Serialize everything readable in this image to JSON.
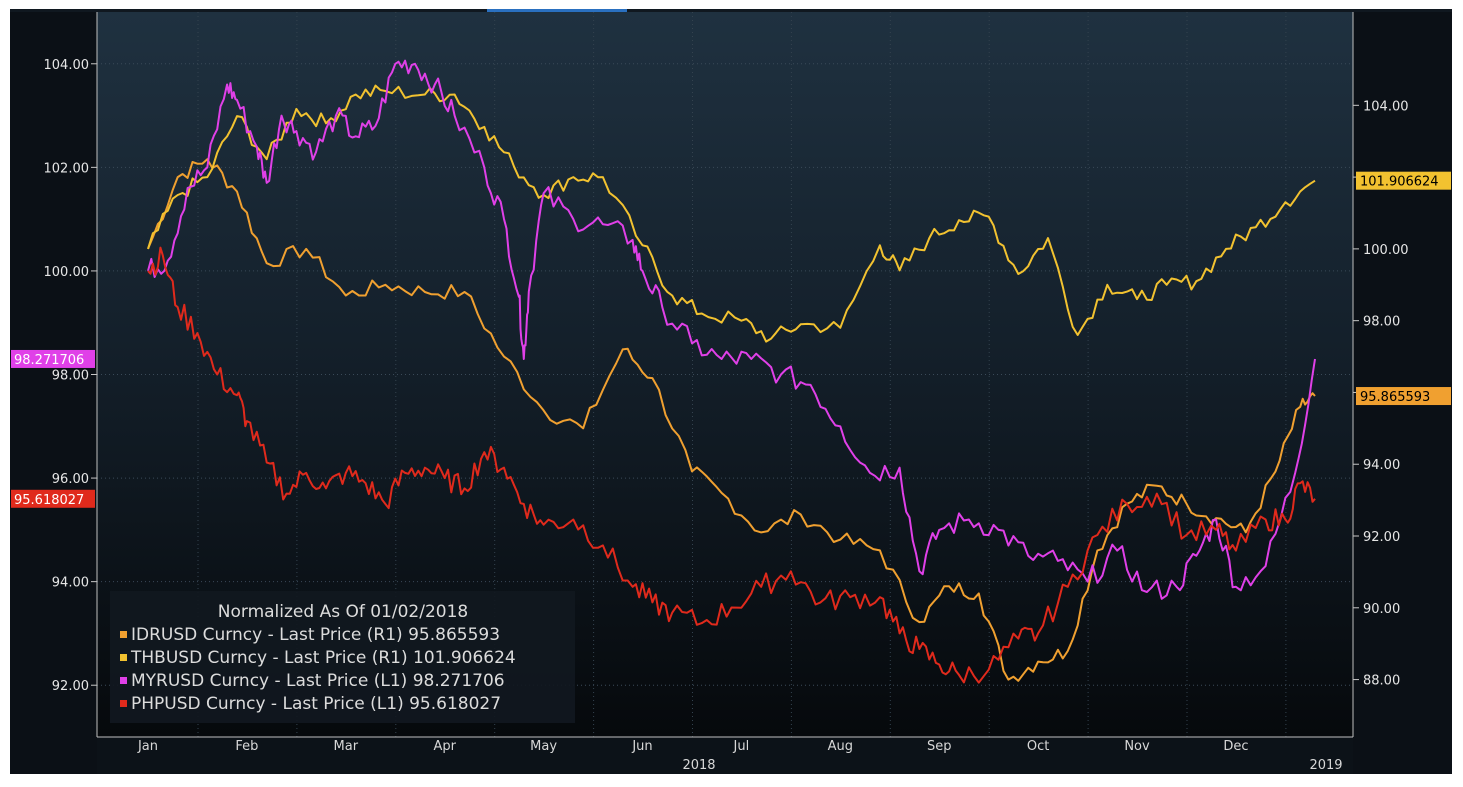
{
  "chart_data": {
    "type": "line",
    "legend_title": "Normalized As Of 01/02/2018",
    "x_months": [
      "Jan",
      "Feb",
      "Mar",
      "Apr",
      "May",
      "Jun",
      "Jul",
      "Aug",
      "Sep",
      "Oct",
      "Nov",
      "Dec"
    ],
    "year_labels": [
      "2018",
      "2019"
    ],
    "left_axis": {
      "ticks": [
        "104.00",
        "102.00",
        "100.00",
        "98.00",
        "96.00",
        "94.00",
        "92.00"
      ],
      "ylim": [
        91.0,
        105.0
      ]
    },
    "right_axis": {
      "ticks": [
        "104.00",
        "102.00",
        "100.00",
        "98.00",
        "96.00",
        "94.00",
        "92.00",
        "90.00",
        "88.00"
      ],
      "ylim": [
        86.4,
        106.6
      ]
    },
    "legend_placement": "bottom-left",
    "series": [
      {
        "name": "IDRUSD Curncy - Last Price (R1) 95.865593",
        "short": "IDRUSD",
        "axis": "right",
        "color": "#f0a030",
        "last_label": "95.865593",
        "x": [
          0,
          0.3,
          0.6,
          0.9,
          1.2,
          1.6,
          2.0,
          2.4,
          2.8,
          3.2,
          3.6,
          4.0,
          4.4,
          4.8,
          5.1,
          5.5,
          5.8,
          6.2,
          6.6,
          7.0,
          7.4,
          7.8,
          8.1,
          8.4,
          8.7,
          9.0,
          9.3,
          9.6,
          9.9,
          10.2,
          10.5,
          10.8,
          11.1,
          11.4,
          11.65,
          11.8
        ],
        "values": [
          100.0,
          102.0,
          102.5,
          101.6,
          99.6,
          100.0,
          98.7,
          99.0,
          98.8,
          98.8,
          97.0,
          95.5,
          95.0,
          97.2,
          96.4,
          93.8,
          93.2,
          92.1,
          92.6,
          91.9,
          91.6,
          89.6,
          90.6,
          90.4,
          88.0,
          88.5,
          88.8,
          91.6,
          92.9,
          93.4,
          92.9,
          92.5,
          92.1,
          93.8,
          95.6,
          95.9
        ]
      },
      {
        "name": "THBUSD Curncy - Last Price (R1) 101.906624",
        "short": "THBUSD",
        "axis": "right",
        "color": "#f2c230",
        "last_label": "101.906624",
        "x": [
          0,
          0.3,
          0.6,
          0.9,
          1.2,
          1.5,
          1.8,
          2.1,
          2.4,
          2.8,
          3.1,
          3.4,
          3.7,
          4.0,
          4.3,
          4.6,
          5.0,
          5.3,
          5.6,
          6.0,
          6.3,
          6.6,
          7.0,
          7.4,
          7.6,
          7.9,
          8.2,
          8.5,
          8.8,
          9.1,
          9.4,
          9.7,
          10.0,
          10.3,
          10.6,
          10.9,
          11.2,
          11.5,
          11.8
        ],
        "values": [
          100.0,
          101.5,
          102.0,
          103.7,
          102.5,
          103.9,
          103.5,
          104.3,
          104.4,
          104.3,
          104.3,
          103.4,
          102.3,
          101.5,
          102.0,
          102.0,
          100.1,
          98.7,
          98.2,
          98.0,
          97.5,
          97.9,
          97.8,
          100.1,
          99.4,
          100.3,
          100.8,
          100.9,
          99.3,
          100.3,
          97.6,
          99.0,
          98.6,
          99.0,
          99.1,
          100.0,
          100.6,
          101.3,
          101.9
        ]
      },
      {
        "name": "MYRUSD Curncy - Last Price (L1) 98.271706",
        "short": "MYRUSD",
        "axis": "left",
        "color": "#e040e8",
        "last_label": "98.271706",
        "x": [
          0,
          0.2,
          0.4,
          0.6,
          0.8,
          0.9,
          1.1,
          1.2,
          1.35,
          1.5,
          1.7,
          1.9,
          2.1,
          2.3,
          2.5,
          2.7,
          2.9,
          3.1,
          3.4,
          3.6,
          3.75,
          3.8,
          3.85,
          4.0,
          4.3,
          4.6,
          4.9,
          5.0,
          5.2,
          5.5,
          5.8,
          6.1,
          6.4,
          6.7,
          7.0,
          7.3,
          7.6,
          7.8,
          8.0,
          8.3,
          8.6,
          8.9,
          9.2,
          9.5,
          9.8,
          10.1,
          10.4,
          10.6,
          10.8,
          11.0,
          11.3,
          11.6,
          11.8
        ],
        "values": [
          100.0,
          100.2,
          101.6,
          102.0,
          103.6,
          103.3,
          102.4,
          101.7,
          103.0,
          102.7,
          102.3,
          103.0,
          102.6,
          102.8,
          104.0,
          104.0,
          103.6,
          103.0,
          102.0,
          101.0,
          99.5,
          98.3,
          99.6,
          101.5,
          101.0,
          100.9,
          100.6,
          100.0,
          99.3,
          98.6,
          98.3,
          98.3,
          98.0,
          97.8,
          97.0,
          96.1,
          96.2,
          94.2,
          95.0,
          95.2,
          95.0,
          94.5,
          94.4,
          94.0,
          94.6,
          93.8,
          93.9,
          94.5,
          95.2,
          93.9,
          94.3,
          96.1,
          98.3
        ]
      },
      {
        "name": "PHPUSD Curncy - Last Price (L1) 95.618027",
        "short": "PHPUSD",
        "axis": "left",
        "color": "#e02a1c",
        "last_label": "95.618027",
        "x": [
          0,
          0.15,
          0.3,
          0.5,
          0.7,
          0.9,
          1.0,
          1.2,
          1.4,
          1.6,
          1.8,
          2.0,
          2.2,
          2.4,
          2.6,
          2.8,
          3.0,
          3.2,
          3.4,
          3.6,
          3.8,
          4.0,
          4.3,
          4.6,
          4.9,
          5.1,
          5.3,
          5.6,
          5.9,
          6.2,
          6.5,
          6.8,
          7.1,
          7.4,
          7.6,
          7.8,
          8.0,
          8.2,
          8.5,
          8.8,
          9.0,
          9.3,
          9.6,
          9.9,
          10.2,
          10.5,
          10.8,
          11.0,
          11.3,
          11.5,
          11.65,
          11.8
        ],
        "values": [
          100.0,
          100.3,
          99.3,
          98.8,
          98.0,
          97.6,
          97.1,
          96.3,
          95.7,
          96.1,
          95.8,
          96.1,
          95.9,
          95.5,
          96.1,
          96.2,
          96.0,
          95.8,
          96.5,
          96.2,
          95.5,
          95.1,
          95.2,
          94.7,
          93.9,
          93.6,
          93.4,
          93.2,
          93.5,
          93.9,
          94.2,
          93.6,
          93.7,
          93.7,
          93.0,
          92.7,
          92.4,
          92.2,
          92.3,
          92.9,
          93.0,
          93.9,
          94.9,
          95.5,
          95.7,
          94.9,
          95.0,
          94.6,
          95.2,
          95.2,
          95.9,
          95.6
        ]
      }
    ]
  }
}
